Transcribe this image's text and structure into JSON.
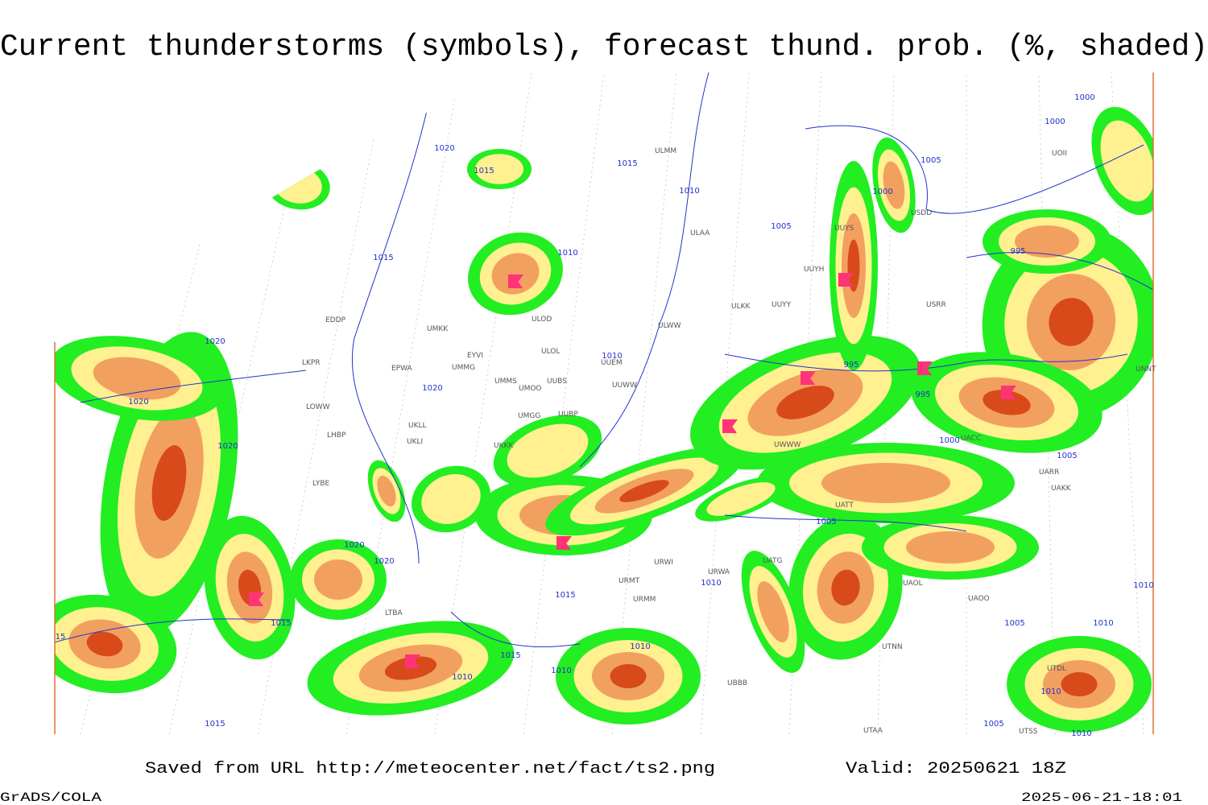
{
  "title": "Current thunderstorms (symbols), forecast thund. prob. (%, shaded)",
  "footer": {
    "source": "Saved from URL http://meteocenter.net/fact/ts2.png",
    "valid": "Valid: 20250621 18Z",
    "software": "GrADS/COLA",
    "timestamp": "2025-06-21-18:01"
  },
  "isobar_labels": [
    1020,
    1015,
    1015,
    1010,
    1005,
    1000,
    1005,
    1000,
    1000,
    1010,
    1015,
    1020,
    1020,
    1020,
    1010,
    1020,
    995,
    995,
    995,
    1000,
    1005,
    1005,
    1020,
    1020,
    1015,
    1010,
    1015,
    1015,
    1010,
    1010,
    1010,
    1005,
    1010,
    1010,
    1005,
    1015,
    1010,
    1010,
    15
  ],
  "stations": [
    "ULMM",
    "ULAA",
    "USDD",
    "UOII",
    "UUYS",
    "UUYH",
    "ULKK",
    "UUYY",
    "ULWW",
    "ULOL",
    "UUEM",
    "UUWW",
    "UUBS",
    "UMMS",
    "UMOO",
    "UMGG",
    "UUBP",
    "UMMG",
    "EYVI",
    "EPWA",
    "ULOD",
    "EDDP",
    "UMKK",
    "LKPR",
    "LOWW",
    "LHBP",
    "UKLL",
    "UKLI",
    "UKKK",
    "LYBE",
    "UWWW",
    "UATT",
    "UACC",
    "UATG",
    "URWA",
    "URWI",
    "URMT",
    "URMM",
    "UTAA",
    "UTSS",
    "UTDL",
    "UTNN",
    "UAOL",
    "UAOO",
    "UBBB",
    "LTBA",
    "UARR",
    "UAKK",
    "USRR",
    "UNNT"
  ]
}
